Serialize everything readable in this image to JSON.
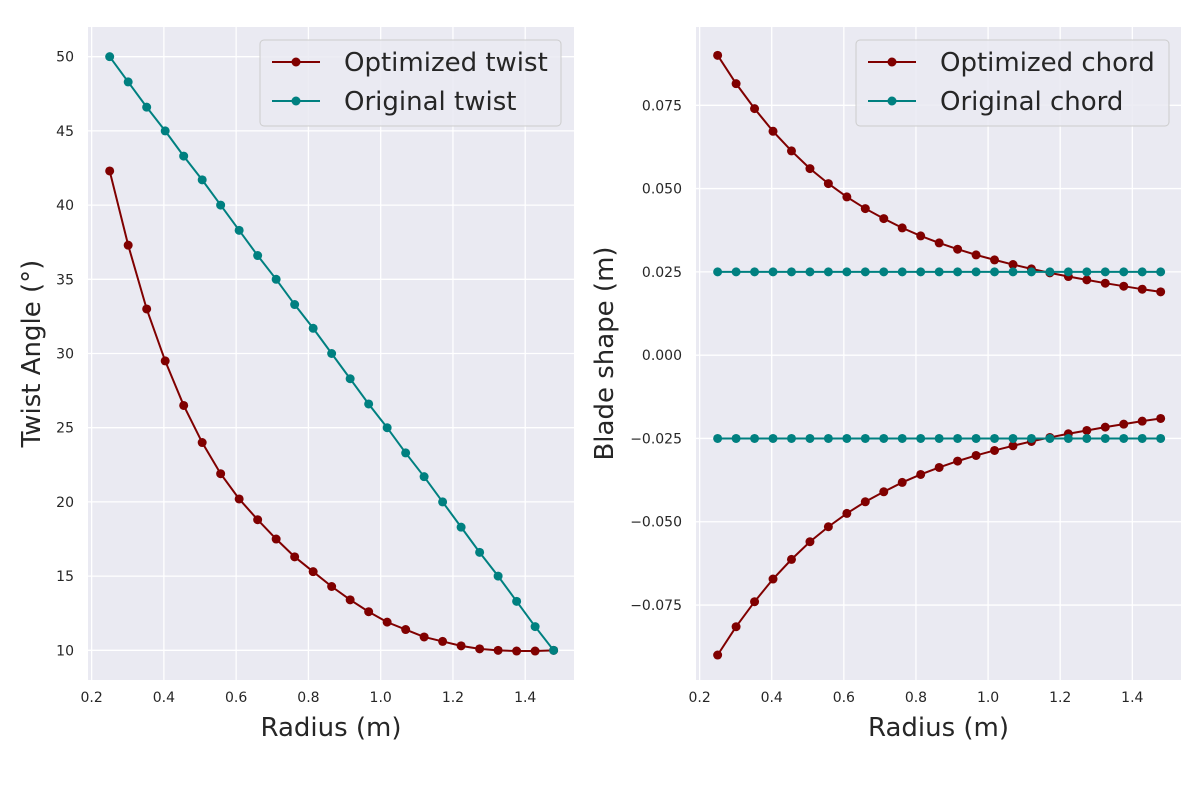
{
  "chart_data": [
    {
      "type": "line",
      "xlabel": "Radius (m)",
      "ylabel": "Twist Angle (°)",
      "xlim": [
        0.19,
        1.535
      ],
      "ylim": [
        8.0,
        52.0
      ],
      "xticks": [
        0.2,
        0.4,
        0.6,
        0.8,
        1.0,
        1.2,
        1.4
      ],
      "xtick_labels": [
        "0.2",
        "0.4",
        "0.6",
        "0.8",
        "1.0",
        "1.2",
        "1.4"
      ],
      "yticks": [
        10,
        15,
        20,
        25,
        30,
        35,
        40,
        45,
        50
      ],
      "ytick_labels": [
        "10",
        "15",
        "20",
        "25",
        "30",
        "35",
        "40",
        "45",
        "50"
      ],
      "grid": true,
      "legend_position": "top-right",
      "x": [
        0.25,
        0.3012,
        0.3524,
        0.4036,
        0.4548,
        0.506,
        0.5571,
        0.6083,
        0.6595,
        0.7107,
        0.7619,
        0.8131,
        0.8643,
        0.9155,
        0.9667,
        1.0179,
        1.0691,
        1.1202,
        1.1714,
        1.2226,
        1.2738,
        1.325,
        1.3762,
        1.4274,
        1.4786
      ],
      "series": [
        {
          "name": "Optimized twist",
          "color": "#800000",
          "values": [
            42.3,
            37.3,
            33.0,
            29.5,
            26.5,
            24.0,
            21.9,
            20.2,
            18.8,
            17.5,
            16.3,
            15.3,
            14.3,
            13.4,
            12.6,
            11.9,
            11.4,
            10.9,
            10.6,
            10.3,
            10.1,
            10.0,
            9.95,
            9.95,
            10.0
          ]
        },
        {
          "name": "Original twist",
          "color": "#008080",
          "values": [
            50.0,
            48.3,
            46.6,
            45.0,
            43.3,
            41.7,
            40.0,
            38.3,
            36.6,
            35.0,
            33.3,
            31.7,
            30.0,
            28.3,
            26.6,
            25.0,
            23.3,
            21.7,
            20.0,
            18.3,
            16.6,
            15.0,
            13.3,
            11.6,
            10.0
          ]
        }
      ]
    },
    {
      "type": "line",
      "xlabel": "Radius (m)",
      "ylabel": "Blade shape (m)",
      "xlim": [
        0.19,
        1.535
      ],
      "ylim": [
        -0.0975,
        0.0985
      ],
      "xticks": [
        0.2,
        0.4,
        0.6,
        0.8,
        1.0,
        1.2,
        1.4
      ],
      "xtick_labels": [
        "0.2",
        "0.4",
        "0.6",
        "0.8",
        "1.0",
        "1.2",
        "1.4"
      ],
      "yticks": [
        -0.075,
        -0.05,
        -0.025,
        0.0,
        0.025,
        0.05,
        0.075
      ],
      "ytick_labels": [
        "−0.075",
        "−0.050",
        "−0.025",
        "0.000",
        "0.025",
        "0.050",
        "0.075"
      ],
      "grid": true,
      "legend_position": "top-right",
      "x": [
        0.25,
        0.3012,
        0.3524,
        0.4036,
        0.4548,
        0.506,
        0.5571,
        0.6083,
        0.6595,
        0.7107,
        0.7619,
        0.8131,
        0.8643,
        0.9155,
        0.9667,
        1.0179,
        1.0691,
        1.1202,
        1.1714,
        1.2226,
        1.2738,
        1.325,
        1.3762,
        1.4274,
        1.4786
      ],
      "series": [
        {
          "name": "Optimized chord",
          "color": "#800000",
          "values": [
            0.09,
            0.0815,
            0.074,
            0.0672,
            0.0613,
            0.056,
            0.0515,
            0.0475,
            0.044,
            0.041,
            0.0382,
            0.0358,
            0.0337,
            0.0318,
            0.0301,
            0.0286,
            0.0272,
            0.0259,
            0.0247,
            0.0236,
            0.0226,
            0.0216,
            0.0207,
            0.0198,
            0.019
          ]
        },
        {
          "name": "",
          "color": "#800000",
          "values": [
            -0.09,
            -0.0815,
            -0.074,
            -0.0672,
            -0.0613,
            -0.056,
            -0.0515,
            -0.0475,
            -0.044,
            -0.041,
            -0.0382,
            -0.0358,
            -0.0337,
            -0.0318,
            -0.0301,
            -0.0286,
            -0.0272,
            -0.0259,
            -0.0247,
            -0.0236,
            -0.0226,
            -0.0216,
            -0.0207,
            -0.0198,
            -0.019
          ]
        },
        {
          "name": "Original chord",
          "color": "#008080",
          "values": [
            0.025,
            0.025,
            0.025,
            0.025,
            0.025,
            0.025,
            0.025,
            0.025,
            0.025,
            0.025,
            0.025,
            0.025,
            0.025,
            0.025,
            0.025,
            0.025,
            0.025,
            0.025,
            0.025,
            0.025,
            0.025,
            0.025,
            0.025,
            0.025,
            0.025
          ]
        },
        {
          "name": "",
          "color": "#008080",
          "values": [
            -0.025,
            -0.025,
            -0.025,
            -0.025,
            -0.025,
            -0.025,
            -0.025,
            -0.025,
            -0.025,
            -0.025,
            -0.025,
            -0.025,
            -0.025,
            -0.025,
            -0.025,
            -0.025,
            -0.025,
            -0.025,
            -0.025,
            -0.025,
            -0.025,
            -0.025,
            -0.025,
            -0.025,
            -0.025
          ]
        }
      ]
    }
  ]
}
